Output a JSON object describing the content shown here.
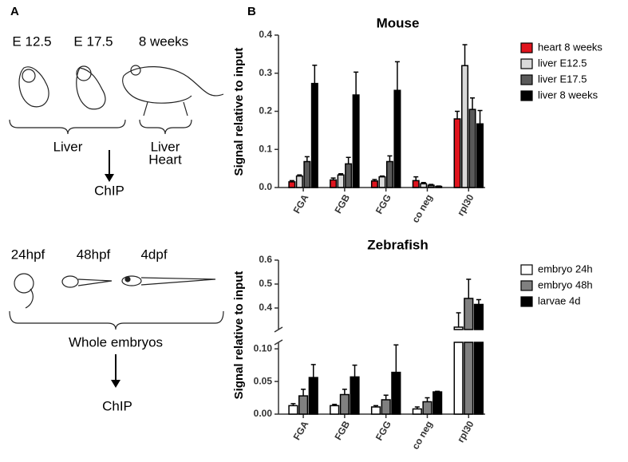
{
  "panel_labels": [
    "A",
    "B"
  ],
  "panel_a": {
    "mouse_stages": [
      "E 12.5",
      "E 17.5",
      "8 weeks"
    ],
    "mouse_tissues": [
      "Liver",
      "Liver",
      "Heart"
    ],
    "mouse_method": "ChIP",
    "zebrafish_stages": [
      "24hpf",
      "48hpf",
      "4dpf"
    ],
    "zebrafish_tissue": "Whole embryos",
    "zebrafish_method": "ChIP"
  },
  "chart_data": [
    {
      "type": "bar",
      "title": "Mouse",
      "y_label": "Signal relative to input",
      "categories": [
        "FGA",
        "FGB",
        "FGG",
        "co neg",
        "rpl30"
      ],
      "series": [
        {
          "name": "heart 8 weeks",
          "color": "#e0141e",
          "values": [
            0.015,
            0.02,
            0.017,
            0.018,
            0.18
          ],
          "errors": [
            0.003,
            0.005,
            0.004,
            0.01,
            0.02
          ]
        },
        {
          "name": "liver E12.5",
          "color": "#d9d9d9",
          "values": [
            0.03,
            0.033,
            0.028,
            0.01,
            0.32
          ],
          "errors": [
            0.003,
            0.003,
            0.002,
            0.003,
            0.055
          ]
        },
        {
          "name": "liver E17.5",
          "color": "#5a5a5a",
          "values": [
            0.068,
            0.062,
            0.068,
            0.006,
            0.205
          ],
          "errors": [
            0.013,
            0.017,
            0.015,
            0.002,
            0.03
          ]
        },
        {
          "name": "liver 8 weeks",
          "color": "#000000",
          "values": [
            0.273,
            0.243,
            0.255,
            0.003,
            0.167
          ],
          "errors": [
            0.048,
            0.06,
            0.075,
            0.001,
            0.035
          ]
        }
      ],
      "ylim": [
        0,
        0.4
      ],
      "yticks": [
        {
          "value": 0,
          "label": "0.0"
        },
        0.1,
        0.2,
        0.3,
        0.4
      ],
      "legend": "right"
    },
    {
      "type": "bar",
      "title": "Zebrafish",
      "y_label": "Signal relative to input",
      "categories": [
        "FGA",
        "FGB",
        "FGG",
        "co neg",
        "rpl30"
      ],
      "series": [
        {
          "name": "embryo 24h",
          "color": "#ffffff",
          "values": [
            0.013,
            0.013,
            0.011,
            0.008,
            0.32
          ],
          "errors": [
            0.003,
            0.002,
            0.002,
            0.003,
            0.06
          ]
        },
        {
          "name": "embryo 48h",
          "color": "#808080",
          "values": [
            0.028,
            0.03,
            0.022,
            0.019,
            0.44
          ],
          "errors": [
            0.01,
            0.008,
            0.007,
            0.006,
            0.08
          ]
        },
        {
          "name": "larvae 4d",
          "color": "#000000",
          "values": [
            0.056,
            0.057,
            0.064,
            0.034,
            0.415
          ],
          "errors": [
            0.02,
            0.018,
            0.042,
            0.001,
            0.02
          ]
        }
      ],
      "y_segments": [
        {
          "ylim": [
            0,
            0.11
          ],
          "yticks": [
            {
              "value": 0,
              "label": "0.00"
            },
            0.05,
            {
              "value": 0.1,
              "label": "0.10"
            }
          ]
        },
        {
          "ylim": [
            0.31,
            0.6
          ],
          "yticks": [
            0.4,
            0.5,
            0.6
          ]
        }
      ],
      "legend": "right"
    }
  ]
}
